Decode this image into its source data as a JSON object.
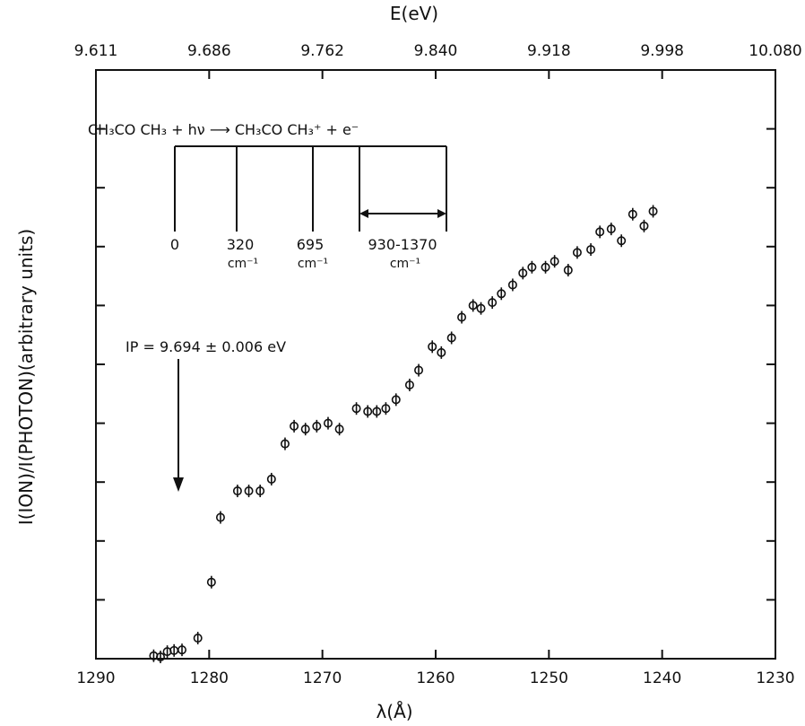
{
  "chart_data": {
    "type": "scatter",
    "ylabel": "I(ION)/I(PHOTON)(arbitrary units)",
    "xlabel": "λ(Å)",
    "top_axis_label": "E(eV)",
    "x_reversed": true,
    "xlim": [
      1230,
      1290
    ],
    "ylim": [
      0,
      100
    ],
    "y_ticks_unlabeled": true,
    "x_ticks": [
      "1290",
      "1280",
      "1270",
      "1260",
      "1250",
      "1240",
      "1230"
    ],
    "top_ticks": [
      "9.611",
      "9.686",
      "9.762",
      "9.840",
      "9.918",
      "9.998",
      "10.080"
    ],
    "grid": false,
    "series": [
      {
        "x": [
          1284.9,
          1284.3,
          1283.7,
          1283.1,
          1282.4,
          1281.0,
          1279.8,
          1279.0,
          1277.5,
          1276.5,
          1275.5,
          1274.5,
          1273.3,
          1272.5,
          1271.5,
          1270.5,
          1269.5,
          1268.5,
          1267.0,
          1266.0,
          1265.2,
          1264.4,
          1263.5,
          1262.3,
          1261.5,
          1260.3,
          1259.5,
          1258.6,
          1257.7,
          1256.7,
          1256.0,
          1255.0,
          1254.2,
          1253.2,
          1252.3,
          1251.5,
          1250.3,
          1249.5,
          1248.3,
          1247.5,
          1246.3,
          1245.5,
          1244.5,
          1243.6,
          1242.6,
          1241.6,
          1240.8
        ],
        "y": [
          0.5,
          0.3,
          1.2,
          1.4,
          1.5,
          3.5,
          13.0,
          24.0,
          28.5,
          28.5,
          28.5,
          30.5,
          36.5,
          39.5,
          39.0,
          39.5,
          40.0,
          39.0,
          42.5,
          42.0,
          42.0,
          42.5,
          44.0,
          46.5,
          49.0,
          53.0,
          52.0,
          54.5,
          58.0,
          60.0,
          59.5,
          60.5,
          62.0,
          63.5,
          65.5,
          66.5,
          66.5,
          67.5,
          66.0,
          69.0,
          69.5,
          72.5,
          73.0,
          71.0,
          75.5,
          73.5,
          76.0
        ]
      }
    ],
    "annotations": {
      "reaction": "CH₃CO CH₃ + hν ⟶ CH₃CO CH₃⁺ + e⁻",
      "levels": [
        "0",
        "320",
        "695",
        "930-1370"
      ],
      "level_units": [
        "cm⁻¹",
        "cm⁻¹",
        "cm⁻¹"
      ],
      "ip_label": "IP = 9.694 ± 0.006 eV"
    }
  }
}
